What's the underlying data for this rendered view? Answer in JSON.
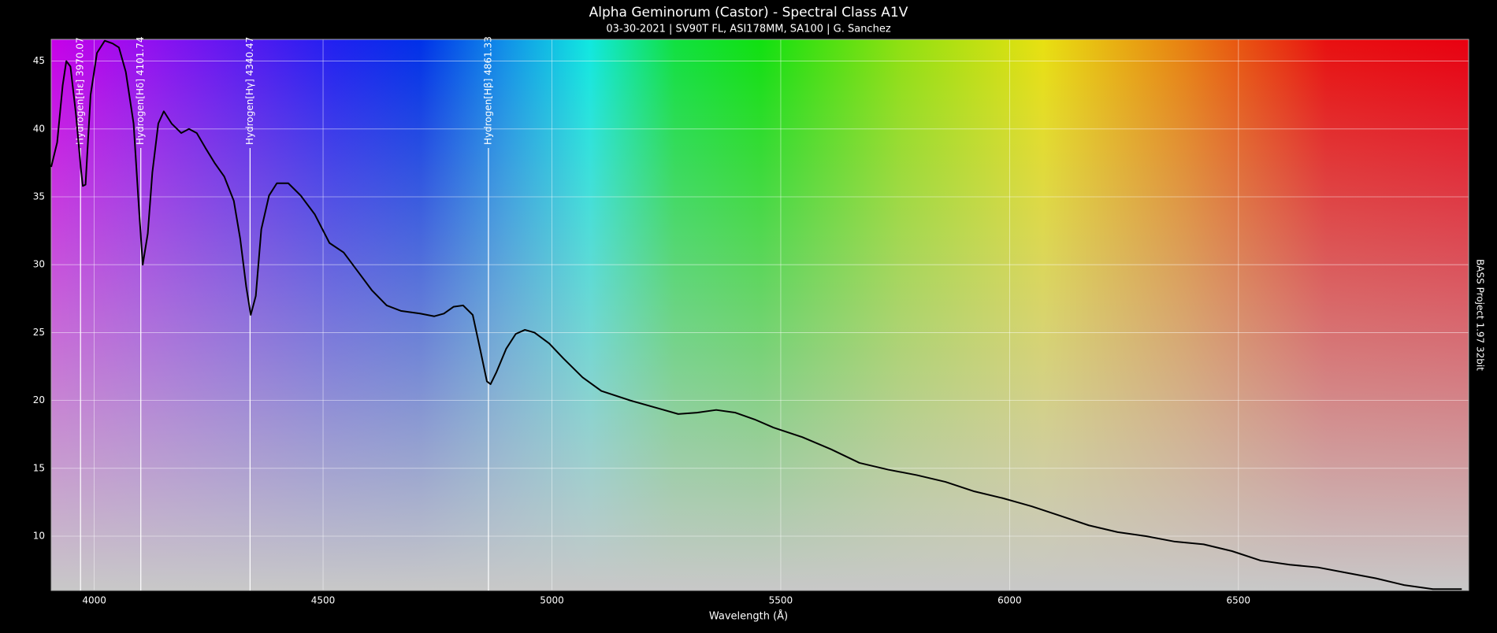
{
  "chart_data": {
    "type": "line",
    "title": "Alpha Geminorum (Castor) - Spectral Class A1V",
    "subtitle": "03-30-2021 | SV90T FL, ASI178MM, SA100 | G. Sanchez",
    "x_label": "Wavelength (Å)",
    "side_note": "BASS Project 1.97  32bit",
    "color": "#000000",
    "grid": true,
    "xlim": [
      3906,
      7003
    ],
    "ylim": [
      6,
      46.6
    ],
    "xticks": [
      4000,
      4500,
      5000,
      5500,
      6000,
      6500
    ],
    "yticks": [
      10,
      15,
      20,
      25,
      30,
      35,
      40,
      45
    ],
    "annotations": [
      {
        "x": 3970.07,
        "label": "Hydrogen[Hε] 3970.07"
      },
      {
        "x": 4101.74,
        "label": "Hydrogen[Hδ] 4101.74"
      },
      {
        "x": 4340.47,
        "label": "Hydrogen[Hγ] 4340.47"
      },
      {
        "x": 4861.33,
        "label": "Hydrogen[Hβ] 4861.33"
      }
    ],
    "x": [
      3906,
      3919,
      3931,
      3939,
      3948,
      3960,
      3971,
      3975,
      3981,
      3992,
      4006,
      4023,
      4040,
      4054,
      4069,
      4086,
      4098,
      4106,
      4117,
      4127,
      4140,
      4152,
      4169,
      4190,
      4207,
      4224,
      4243,
      4263,
      4284,
      4305,
      4319,
      4332,
      4342,
      4353,
      4365,
      4382,
      4399,
      4424,
      4451,
      4482,
      4514,
      4545,
      4576,
      4607,
      4639,
      4670,
      4712,
      4743,
      4764,
      4785,
      4806,
      4827,
      4843,
      4858,
      4866,
      4879,
      4900,
      4921,
      4941,
      4962,
      4994,
      5025,
      5067,
      5108,
      5171,
      5234,
      5276,
      5317,
      5359,
      5401,
      5443,
      5484,
      5547,
      5610,
      5672,
      5735,
      5797,
      5860,
      5923,
      5985,
      6048,
      6111,
      6173,
      6236,
      6298,
      6361,
      6424,
      6486,
      6549,
      6612,
      6674,
      6737,
      6800,
      6862,
      6925,
      6988
    ],
    "values": [
      37.2,
      39.0,
      43.2,
      45.0,
      44.6,
      41.1,
      37.0,
      35.8,
      35.9,
      42.5,
      45.6,
      46.5,
      46.3,
      46.0,
      44.2,
      40.4,
      34.0,
      30.0,
      32.3,
      36.8,
      40.4,
      41.3,
      40.4,
      39.7,
      40.0,
      39.7,
      38.6,
      37.5,
      36.5,
      34.7,
      31.9,
      28.4,
      26.3,
      27.7,
      32.6,
      35.1,
      36.0,
      36.0,
      35.1,
      33.7,
      31.6,
      30.9,
      29.5,
      28.1,
      27.0,
      26.6,
      26.4,
      26.2,
      26.4,
      26.9,
      27.0,
      26.3,
      23.8,
      21.4,
      21.2,
      22.1,
      23.8,
      24.9,
      25.2,
      25.0,
      24.2,
      23.1,
      21.7,
      20.7,
      20.0,
      19.4,
      19.0,
      19.1,
      19.3,
      19.1,
      18.6,
      18.0,
      17.3,
      16.4,
      15.4,
      14.9,
      14.5,
      14.0,
      13.3,
      12.8,
      12.2,
      11.5,
      10.8,
      10.3,
      10.0,
      9.6,
      9.4,
      8.9,
      8.2,
      7.9,
      7.7,
      7.3,
      6.9,
      6.4,
      6.1,
      6.1
    ]
  }
}
